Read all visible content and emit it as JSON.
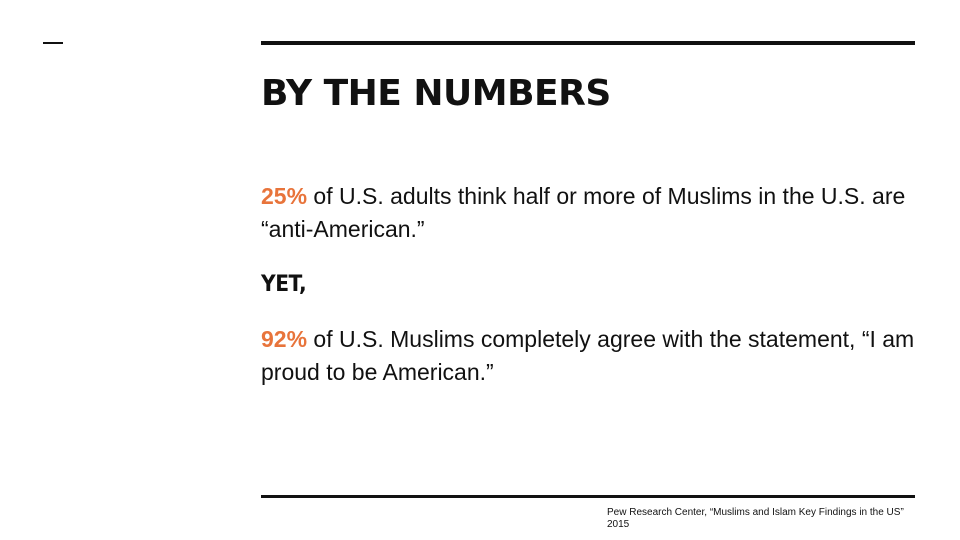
{
  "slide": {
    "title": "BY THE NUMBERS",
    "stat1": {
      "percent": "25%",
      "text": " of U.S. adults think half or more of Muslims in the U.S. are “anti-American.”"
    },
    "connector": "YET,",
    "stat2": {
      "percent": "92%",
      "text": " of U.S. Muslims completely agree with the statement, “I am proud to be American.”"
    },
    "citation": {
      "line1": "Pew Research Center, “Muslims and Islam Key Findings in the US”",
      "line2": "2015"
    }
  },
  "colors": {
    "accent": "#e8743b",
    "text": "#111111",
    "background": "#ffffff"
  }
}
